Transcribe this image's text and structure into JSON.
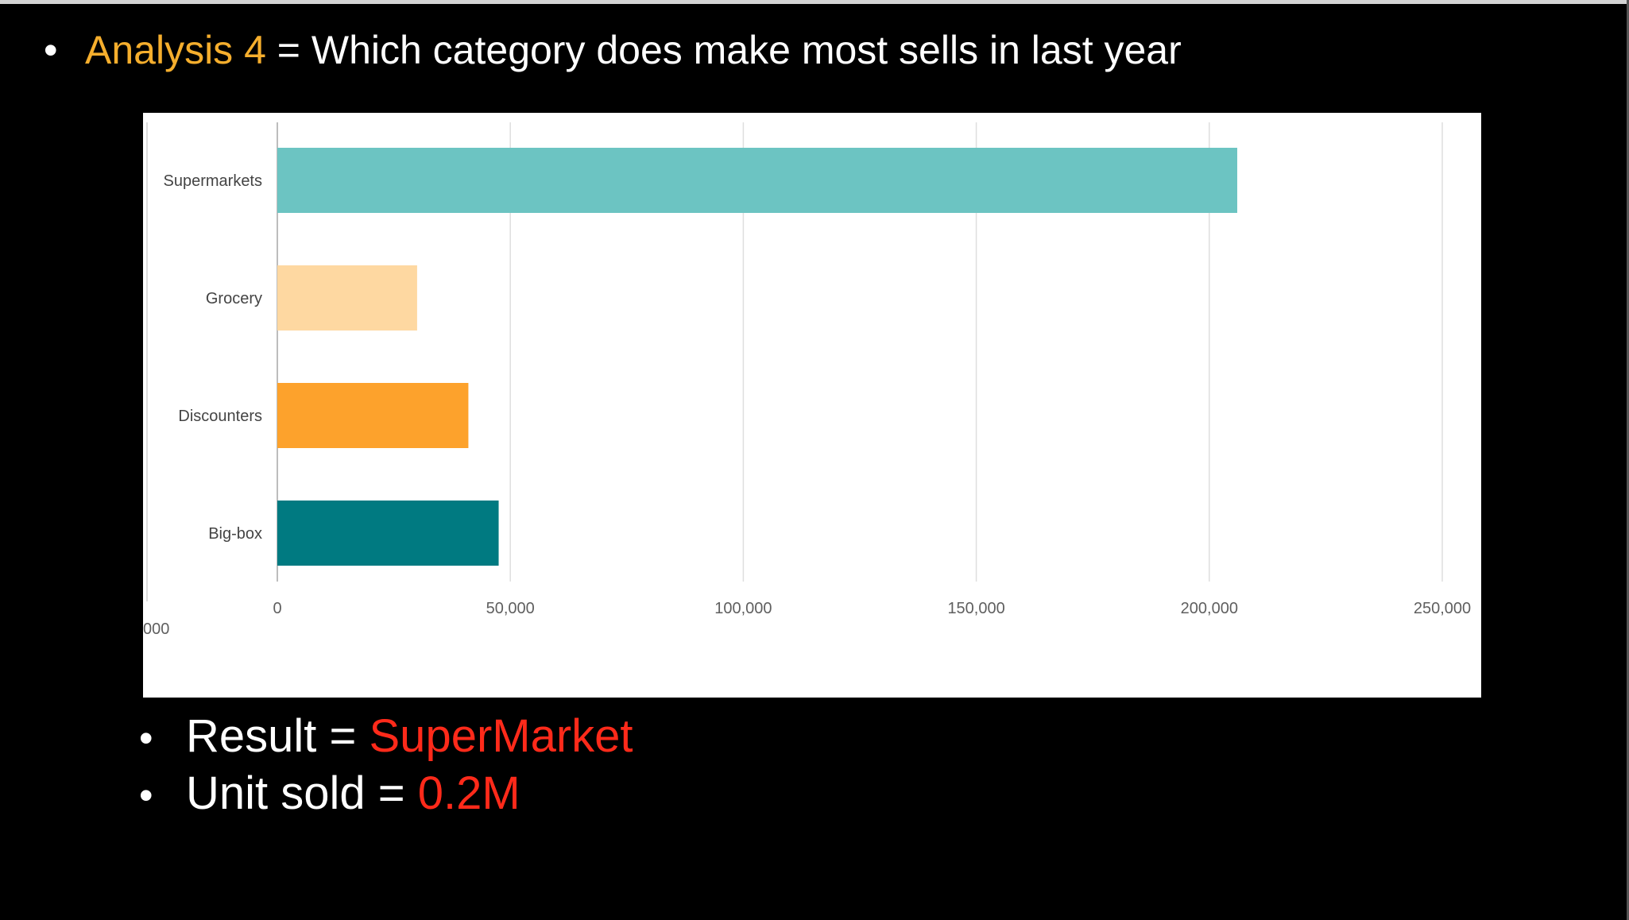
{
  "slide": {
    "bullet": "•",
    "heading_prefix": "Analysis 4",
    "heading_rest": " = Which category does make most sells in last year",
    "result_label": "Result = ",
    "result_value": "SuperMarket",
    "units_label": "Unit sold = ",
    "units_value": "0.2M"
  },
  "colors": {
    "heading_accent": "#f5ae2d",
    "result_accent": "#ff2a1a"
  },
  "chart_data": {
    "type": "bar",
    "orientation": "horizontal",
    "categories": [
      "Supermarkets",
      "Grocery",
      "Discounters",
      "Big-box"
    ],
    "values": [
      206000,
      30000,
      41000,
      47500
    ],
    "colors": [
      "#6cc4c2",
      "#fed8a1",
      "#fda22c",
      "#007a81"
    ],
    "xlim": [
      0,
      250000
    ],
    "x_ticks": [
      0,
      50000,
      100000,
      150000,
      200000,
      250000
    ],
    "x_tick_labels": [
      "0",
      "50,000",
      "100,000",
      "150,000",
      "200,000",
      "250,000"
    ],
    "stray_tick_label": "000",
    "grid": true
  }
}
